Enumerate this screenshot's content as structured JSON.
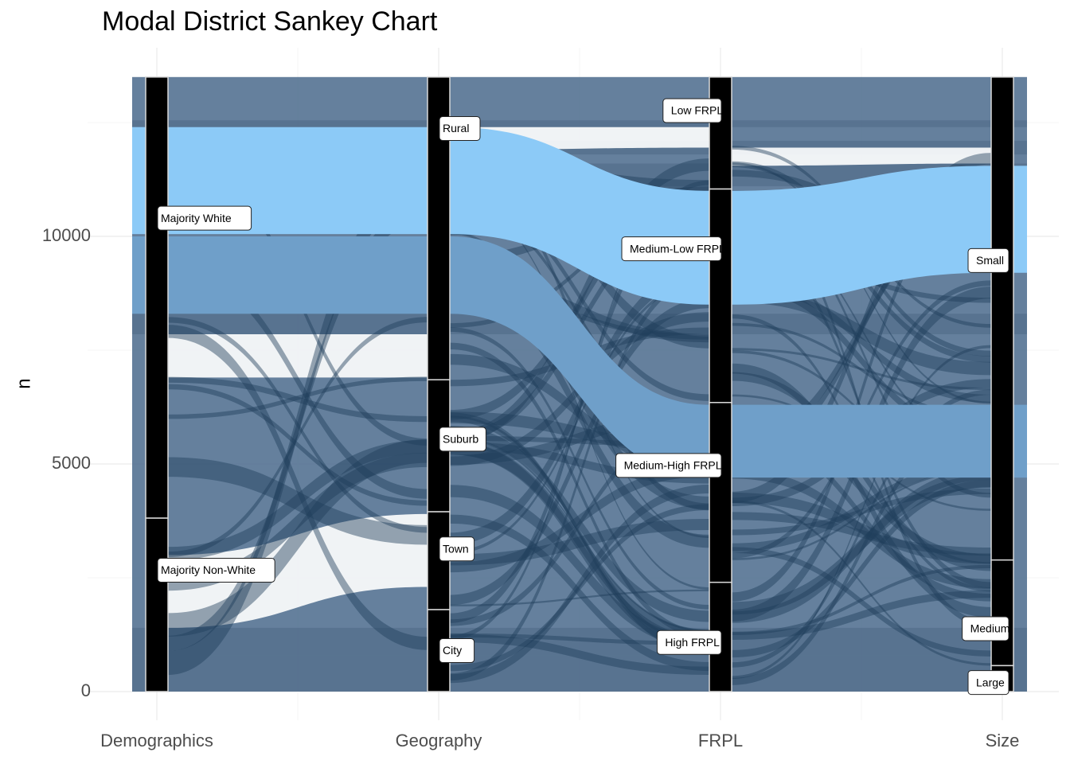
{
  "chart_data": {
    "type": "sankey",
    "title": "Modal District Sankey Chart",
    "xlabel": "",
    "ylabel": "n",
    "ylim": [
      0,
      13500
    ],
    "y_ticks": [
      0,
      5000,
      10000
    ],
    "grid": true,
    "axes": [
      "Demographics",
      "Geography",
      "FRPL",
      "Size"
    ],
    "total": 13500,
    "colors": {
      "flow_default": "#4a6a8c",
      "flow_highlight_light": "#8ccaf7",
      "flow_highlight_mid": "#6f9fc9",
      "flow_cross": "#1f3d5c",
      "node_fill": "#000000",
      "stratum_border": "#d9d9d9"
    },
    "nodes": [
      {
        "axis": "Demographics",
        "strata": [
          {
            "label": "Majority White",
            "value": 9690
          },
          {
            "label": "Majority Non-White",
            "value": 3810
          }
        ]
      },
      {
        "axis": "Geography",
        "strata": [
          {
            "label": "Rural",
            "value": 6650
          },
          {
            "label": "Suburb",
            "value": 2900
          },
          {
            "label": "Town",
            "value": 2150
          },
          {
            "label": "City",
            "value": 1800
          }
        ]
      },
      {
        "axis": "FRPL",
        "strata": [
          {
            "label": "Low FRPL",
            "value": 2460
          },
          {
            "label": "Medium-Low FRPL",
            "value": 4690
          },
          {
            "label": "Medium-High FRPL",
            "value": 3950
          },
          {
            "label": "High FRPL",
            "value": 2400
          }
        ]
      },
      {
        "axis": "Size",
        "strata": [
          {
            "label": "Small",
            "value": 10610
          },
          {
            "label": "Medium",
            "value": 2320
          },
          {
            "label": "Large",
            "value": 570
          }
        ]
      }
    ],
    "highlight_flows": [
      {
        "name": "",
        "values": [
          12400,
          10050,
          12400,
          10050,
          11000,
          8500,
          11550,
          9200
        ],
        "color": "flow_highlight_light"
      },
      {
        "name": "",
        "values": [
          10000,
          8300,
          10000,
          8300,
          6300,
          4700,
          6300,
          4700
        ],
        "color": "flow_highlight_mid"
      }
    ]
  }
}
